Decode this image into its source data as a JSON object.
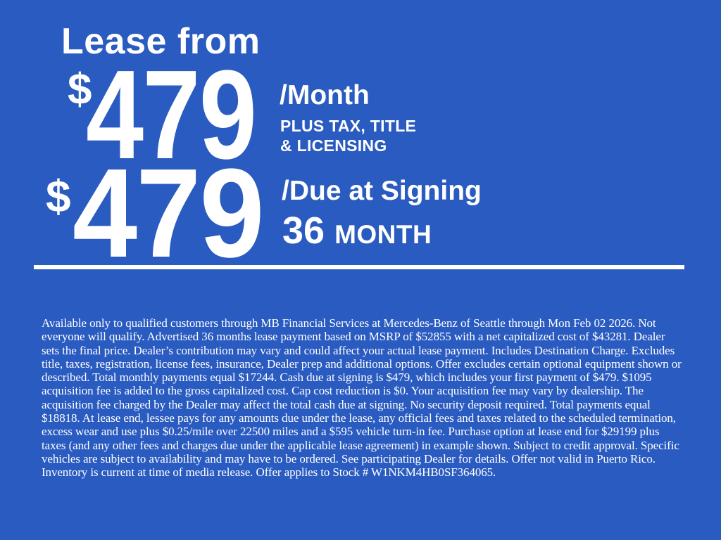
{
  "banner": {
    "background_color": "#2A5BC0",
    "text_color": "#FFFFFF",
    "headline": "Lease from",
    "monthly_offer": {
      "currency": "$",
      "amount": "479",
      "suffix": "/Month",
      "note_line1": "PLUS TAX, TITLE",
      "note_line2": "& LICENSING"
    },
    "signing_offer": {
      "currency": "$",
      "amount": "479",
      "suffix": "/Due at Signing",
      "term_number": "36",
      "term_unit": "MONTH"
    },
    "disclaimer": "Available only to qualified customers through MB Financial Services at Mercedes-Benz of Seattle through Mon Feb 02 2026. Not everyone will qualify. Advertised 36 months lease payment based on MSRP of $52855 with a net capitalized cost of $43281. Dealer sets the final price. Dealer’s contribution may vary and could affect your actual lease payment. Includes Destination Charge. Excludes title, taxes, registration, license fees, insurance, Dealer prep and additional options. Offer excludes certain optional equipment shown or described. Total monthly payments equal $17244. Cash due at signing is $479, which includes your first payment of $479. $1095 acquisition fee is added to the gross capitalized cost. Cap cost reduction is $0. Your acquisition fee may vary by dealership. The acquisition fee charged by the Dealer may affect the total cash due at signing. No security deposit required. Total payments equal $18818. At lease end, lessee pays for any amounts due under the lease, any official fees and taxes related to the scheduled termination, excess wear and use plus $0.25/mile over 22500 miles and a $595 vehicle turn-in fee. Purchase option at lease end for $29199 plus taxes (and any other fees and charges due under the applicable lease agreement) in example shown. Subject to credit approval. Specific vehicles are subject to availability and may have to be ordered. See participating Dealer for details. Offer not valid in Puerto Rico. Inventory is current at time of media release. Offer applies to Stock # W1NKM4HB0SF364065."
  }
}
